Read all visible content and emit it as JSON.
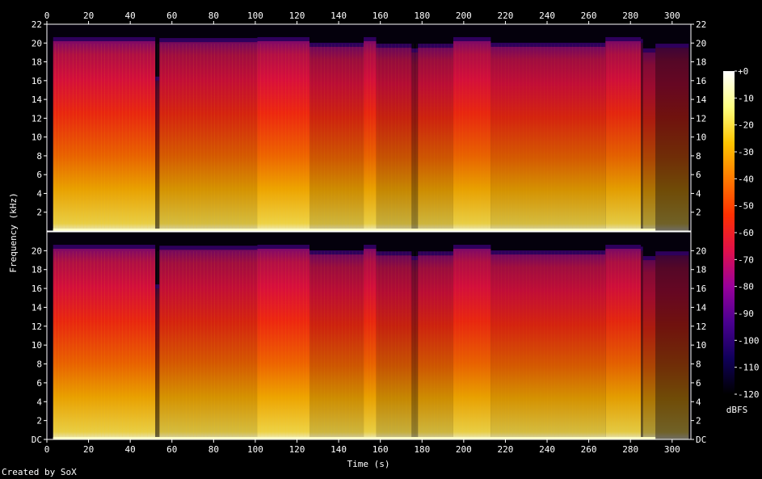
{
  "footer": {
    "credit": "Created by SoX"
  },
  "colors": {
    "background": "#000000",
    "axis": "#ffffff",
    "colormap": [
      "#000000",
      "#10005a",
      "#4a0090",
      "#98009a",
      "#e0104a",
      "#ff3000",
      "#ff7a00",
      "#ffc400",
      "#ffff80",
      "#ffffff"
    ]
  },
  "chart_data": {
    "type": "heatmap",
    "title": "",
    "xlabel": "Time (s)",
    "ylabel": "Frequency (kHz)",
    "xlim": [
      0,
      309
    ],
    "x_ticks": [
      0,
      20,
      40,
      60,
      80,
      100,
      120,
      140,
      160,
      180,
      200,
      220,
      240,
      260,
      280,
      300
    ],
    "ylim": [
      0,
      22
    ],
    "y_tick_values": [
      0,
      2,
      4,
      6,
      8,
      10,
      12,
      14,
      16,
      18,
      20,
      22
    ],
    "y_tick_labels_top": [
      "2",
      "4",
      "6",
      "8",
      "10",
      "12",
      "14",
      "16",
      "18",
      "20",
      "22"
    ],
    "y_tick_labels_bottom": [
      "DC",
      "2",
      "4",
      "6",
      "8",
      "10",
      "12",
      "14",
      "16",
      "18",
      "20"
    ],
    "channels": 2,
    "colorbar": {
      "label": "dBFS",
      "range": [
        -120,
        0
      ],
      "ticks": [
        "+0",
        "-10",
        "-20",
        "-30",
        "-40",
        "-50",
        "-60",
        "-70",
        "-80",
        "-90",
        "-100",
        "-110",
        "-120"
      ]
    },
    "segments": [
      {
        "start": 3,
        "end": 52,
        "cutoff_khz": 20.2,
        "level": 0.66
      },
      {
        "start": 52,
        "end": 54,
        "cutoff_khz": 16,
        "level": 0.15
      },
      {
        "start": 54,
        "end": 101,
        "cutoff_khz": 20.1,
        "level": 0.58
      },
      {
        "start": 101,
        "end": 126,
        "cutoff_khz": 20.2,
        "level": 0.68
      },
      {
        "start": 126,
        "end": 152,
        "cutoff_khz": 19.6,
        "level": 0.55
      },
      {
        "start": 152,
        "end": 158,
        "cutoff_khz": 20.2,
        "level": 0.66
      },
      {
        "start": 158,
        "end": 175,
        "cutoff_khz": 19.5,
        "level": 0.52
      },
      {
        "start": 175,
        "end": 178,
        "cutoff_khz": 19.0,
        "level": 0.3
      },
      {
        "start": 178,
        "end": 195,
        "cutoff_khz": 19.5,
        "level": 0.55
      },
      {
        "start": 195,
        "end": 213,
        "cutoff_khz": 20.2,
        "level": 0.66
      },
      {
        "start": 213,
        "end": 268,
        "cutoff_khz": 19.6,
        "level": 0.58
      },
      {
        "start": 268,
        "end": 285,
        "cutoff_khz": 20.2,
        "level": 0.64
      },
      {
        "start": 285,
        "end": 286,
        "cutoff_khz": 20,
        "level": 0.12
      },
      {
        "start": 286,
        "end": 292,
        "cutoff_khz": 19,
        "level": 0.42
      },
      {
        "start": 292,
        "end": 308,
        "cutoff_khz": 19.5,
        "level": 0.18
      }
    ]
  }
}
